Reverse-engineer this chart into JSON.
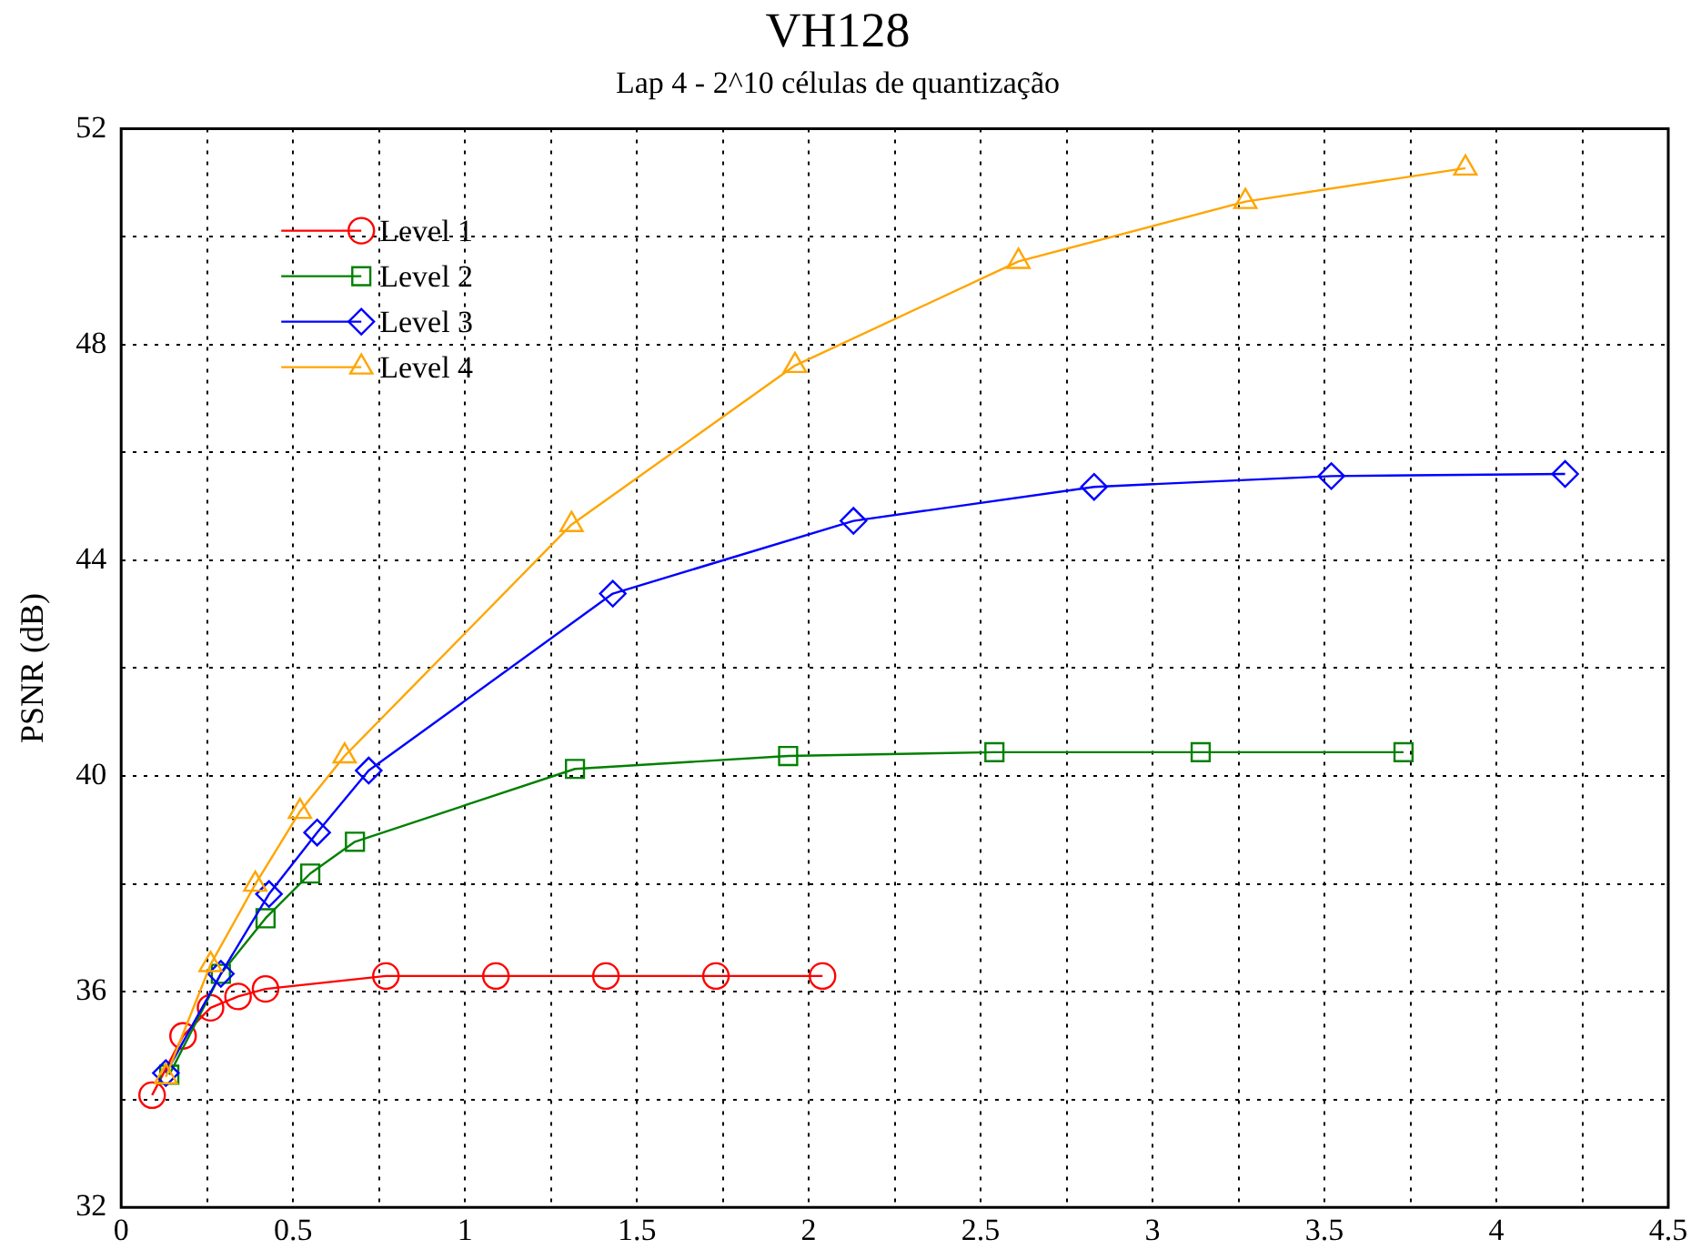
{
  "chart_data": {
    "type": "line",
    "title": "VH128",
    "subtitle": "Lap 4 - 2^10 células de quantização",
    "ylabel": "PSNR (dB)",
    "xlim": [
      0,
      4.5
    ],
    "xticks": [
      0,
      {
        "value": 0.25,
        "label": null
      },
      0.5,
      {
        "value": 0.75,
        "label": null
      },
      1,
      {
        "value": 1.25,
        "label": null
      },
      1.5,
      {
        "value": 1.75,
        "label": null
      },
      2,
      {
        "value": 2.25,
        "label": null
      },
      2.5,
      {
        "value": 2.75,
        "label": null
      },
      3,
      {
        "value": 3.25,
        "label": null
      },
      3.5,
      {
        "value": 3.75,
        "label": null
      },
      4,
      {
        "value": 4.25,
        "label": null
      },
      4.5
    ],
    "ylim": [
      32,
      52
    ],
    "yticks": [
      32,
      {
        "value": 34,
        "label": null
      },
      36,
      {
        "value": 38,
        "label": null
      },
      40,
      {
        "value": 42,
        "label": null
      },
      44,
      {
        "value": 46,
        "label": null
      },
      48,
      {
        "value": 50,
        "label": null
      },
      52
    ],
    "grid": true,
    "legend": "top left",
    "line_style": "solid",
    "series": [
      {
        "name": "Level 1",
        "color": "#ff0000",
        "marker": "circle",
        "x": [
          0.09,
          0.18,
          0.26,
          0.34,
          0.42,
          0.77,
          1.09,
          1.41,
          1.73,
          2.04
        ],
        "values": [
          34.08,
          35.18,
          35.7,
          35.91,
          36.05,
          36.29,
          36.29,
          36.29,
          36.29,
          36.29
        ]
      },
      {
        "name": "Level 2",
        "color": "#008000",
        "marker": "square",
        "x": [
          0.14,
          0.29,
          0.42,
          0.55,
          0.68,
          1.32,
          1.94,
          2.54,
          3.14,
          3.73
        ],
        "values": [
          34.46,
          36.33,
          37.36,
          38.19,
          38.78,
          40.13,
          40.37,
          40.44,
          40.44,
          40.44
        ]
      },
      {
        "name": "Level 3",
        "color": "#0000ff",
        "marker": "diamond",
        "x": [
          0.13,
          0.29,
          0.43,
          0.57,
          0.72,
          1.43,
          2.13,
          2.83,
          3.52,
          4.2
        ],
        "values": [
          34.49,
          36.33,
          37.81,
          38.95,
          40.1,
          43.38,
          44.73,
          45.36,
          45.56,
          45.6
        ]
      },
      {
        "name": "Level 4",
        "color": "#ffa500",
        "marker": "triangle",
        "x": [
          0.13,
          0.26,
          0.39,
          0.52,
          0.65,
          1.31,
          1.96,
          2.61,
          3.27,
          3.91
        ],
        "values": [
          34.42,
          36.5,
          37.99,
          39.34,
          40.37,
          44.66,
          47.61,
          49.54,
          50.65,
          51.27
        ]
      }
    ]
  }
}
